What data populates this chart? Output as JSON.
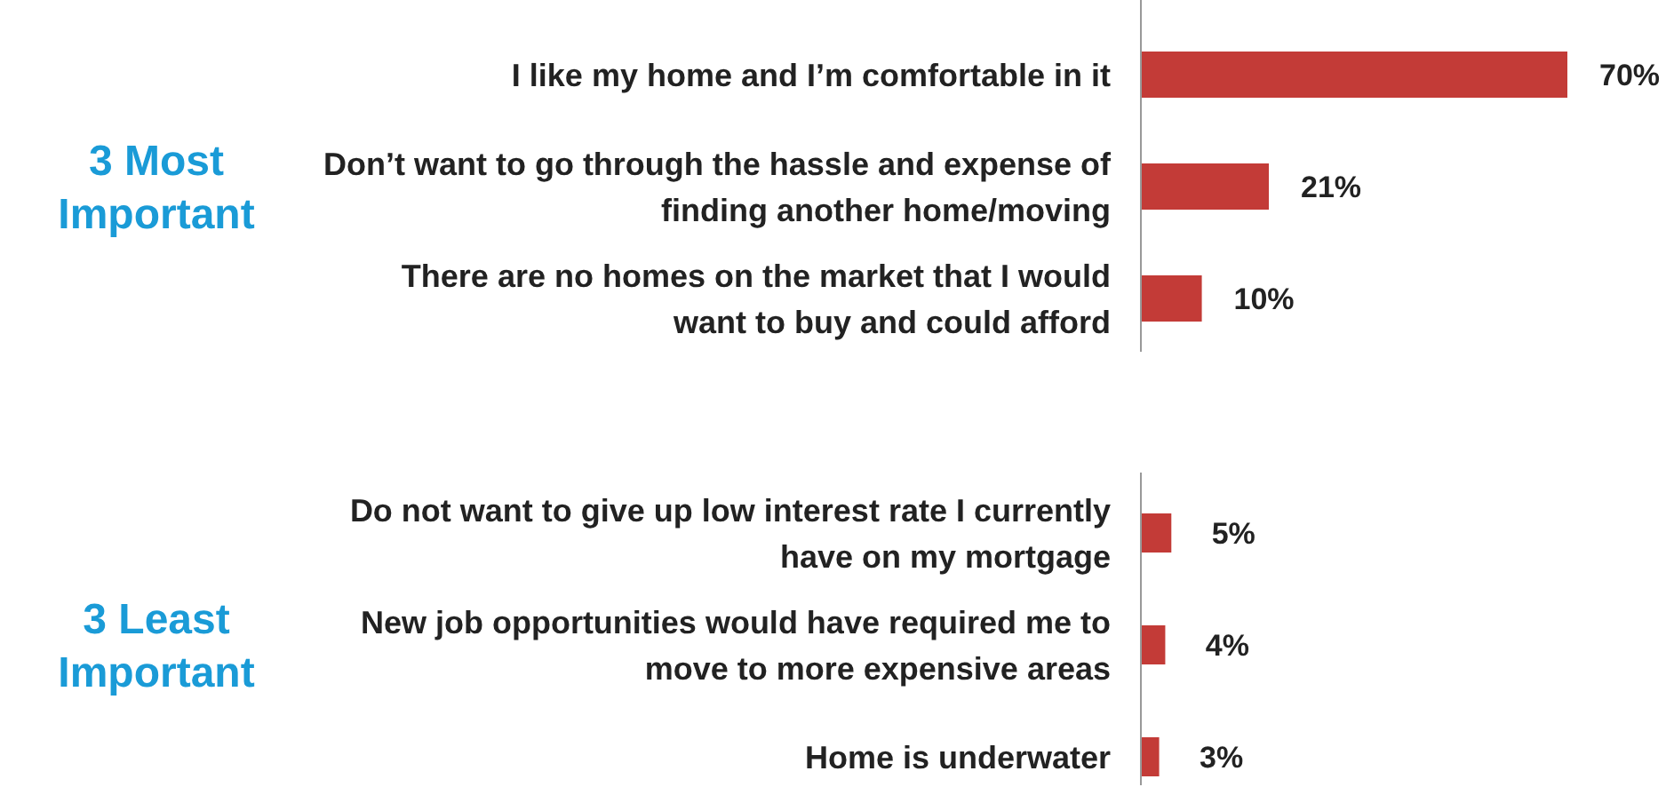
{
  "chart_data": [
    {
      "type": "bar",
      "orientation": "horizontal",
      "title": "3 Most Important",
      "categories": [
        "I like my home and I’m comfortable in it",
        "Don’t want to go through the hassle and expense of finding another home/moving",
        "There are no homes on the market that I would want to buy and could afford"
      ],
      "values": [
        70,
        21,
        10
      ],
      "value_labels": [
        "70%",
        "21%",
        "10%"
      ],
      "color": "#c33b37"
    },
    {
      "type": "bar",
      "orientation": "horizontal",
      "title": "3 Least Important",
      "categories": [
        "Do not want to give up low interest rate I currently have on my mortgage",
        "New job opportunities would have required me to move to more expensive areas",
        "Home is underwater"
      ],
      "values": [
        5,
        4,
        3
      ],
      "value_labels": [
        "5%",
        "4%",
        "3%"
      ],
      "color": "#c33b37"
    }
  ]
}
